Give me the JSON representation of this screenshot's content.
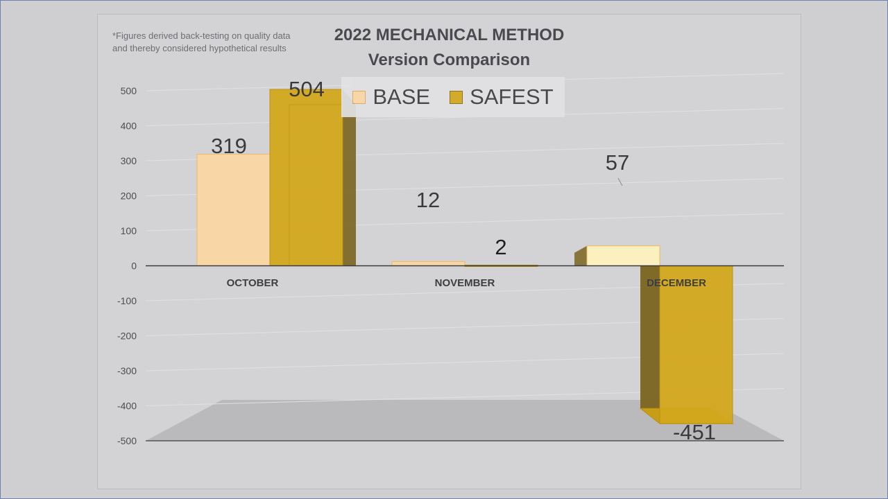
{
  "chart_data": {
    "type": "bar",
    "title": "2022 MECHANICAL METHOD",
    "subtitle": "Version Comparison",
    "footnote": [
      "*Figures derived back-testing on quality data",
      "and thereby considered hypothetical results"
    ],
    "categories": [
      "OCTOBER",
      "NOVEMBER",
      "DECEMBER"
    ],
    "series": [
      {
        "name": "BASE",
        "values": [
          319,
          12,
          57
        ],
        "data_labels": [
          "319",
          "12",
          "57"
        ]
      },
      {
        "name": "SAFEST",
        "values": [
          504,
          2,
          -451
        ],
        "data_labels": [
          "504",
          "2",
          "-451"
        ]
      }
    ],
    "ylim": [
      -500,
      500
    ],
    "yticks": [
      500,
      400,
      300,
      200,
      100,
      0,
      -100,
      -200,
      -300,
      -400,
      -500
    ],
    "ytick_labels": [
      "500",
      "400",
      "300",
      "200",
      "100",
      "0",
      "-100",
      "-200",
      "-300",
      "-400",
      "-500"
    ],
    "legend_position": "top-center",
    "grid": true,
    "colors": {
      "base": "#fcd7a4",
      "base_dec": "#fff3bd",
      "safest": "#d4a81c",
      "safest_dark": "#7a6420"
    }
  }
}
